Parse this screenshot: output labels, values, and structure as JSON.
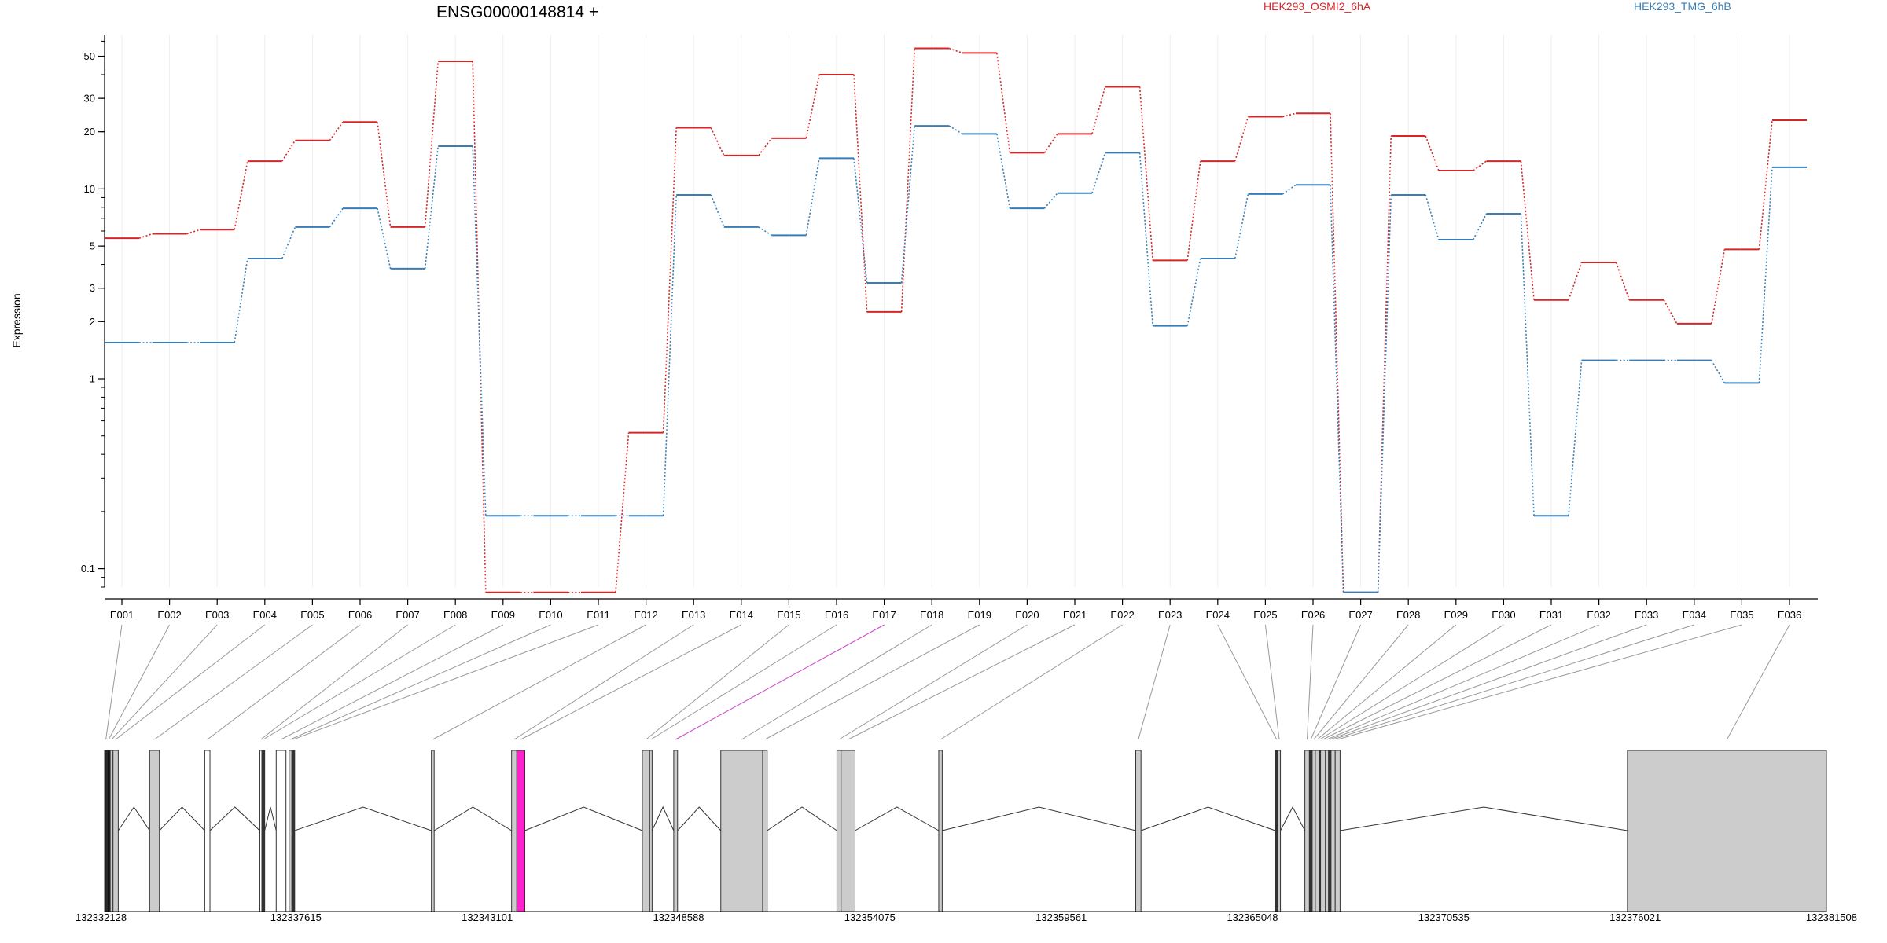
{
  "chart_data": {
    "type": "line",
    "title": "ENSG00000148814 +",
    "ylabel": "Expression",
    "xlabel": "",
    "yscale": "log",
    "ylim": [
      0.08,
      65
    ],
    "yticks": [
      0.1,
      1,
      2,
      3,
      5,
      10,
      20,
      30,
      50
    ],
    "grid": true,
    "legend_position": "top",
    "categories": [
      "E001",
      "E002",
      "E003",
      "E004",
      "E005",
      "E006",
      "E007",
      "E008",
      "E009",
      "E010",
      "E011",
      "E012",
      "E013",
      "E014",
      "E015",
      "E016",
      "E017",
      "E018",
      "E019",
      "E020",
      "E021",
      "E022",
      "E023",
      "E024",
      "E025",
      "E026",
      "E027",
      "E028",
      "E029",
      "E030",
      "E031",
      "E032",
      "E033",
      "E034",
      "E035",
      "E036"
    ],
    "highlight_exon": "E017",
    "series": [
      {
        "name": "HEK293_OSMI2_6hA",
        "color": "#d62728",
        "values": [
          5.5,
          5.8,
          6.1,
          14,
          18,
          22.5,
          6.3,
          47,
          0.075,
          0.075,
          0.075,
          0.52,
          21,
          15,
          18.5,
          40,
          2.25,
          55,
          52,
          15.5,
          19.5,
          34.5,
          4.2,
          14,
          24,
          25,
          0.075,
          19,
          12.5,
          14,
          2.6,
          4.1,
          2.6,
          1.95,
          4.8,
          23
        ]
      },
      {
        "name": "HEK293_TMG_6hB",
        "color": "#377eb8",
        "values": [
          1.55,
          1.55,
          1.55,
          4.3,
          6.3,
          7.9,
          3.8,
          16.8,
          0.19,
          0.19,
          0.19,
          0.19,
          9.3,
          6.3,
          5.7,
          14.5,
          3.2,
          21.5,
          19.5,
          7.9,
          9.5,
          15.5,
          1.9,
          4.3,
          9.4,
          10.5,
          0.075,
          9.3,
          5.4,
          7.4,
          0.19,
          1.25,
          1.25,
          1.25,
          0.95,
          13
        ]
      }
    ],
    "genomic_axis": {
      "tick_labels": [
        "132332128",
        "132337615",
        "132343101",
        "132348588",
        "132354075",
        "132359561",
        "132365048",
        "132370535",
        "132376021",
        "132381508"
      ],
      "range": [
        132332128,
        132381508
      ]
    },
    "exons": [
      {
        "id": "E001",
        "start": 132332128,
        "end": 132332200,
        "fill": "#222222"
      },
      {
        "id": "E002",
        "start": 132332200,
        "end": 132332290,
        "fill": "#111111"
      },
      {
        "id": "E003",
        "start": 132332290,
        "end": 132332370,
        "fill": "#cccccc"
      },
      {
        "id": "E004",
        "start": 132332370,
        "end": 132332520,
        "fill": "#cccccc"
      },
      {
        "id": "E005",
        "start": 132333420,
        "end": 132333700,
        "fill": "#cccccc"
      },
      {
        "id": "E006",
        "start": 132335000,
        "end": 132335150,
        "fill": "#ffffff"
      },
      {
        "id": "E007",
        "start": 132336580,
        "end": 132336640,
        "fill": "#ffffff"
      },
      {
        "id": "E008",
        "start": 132336640,
        "end": 132336720,
        "fill": "#333333"
      },
      {
        "id": "E009",
        "start": 132337050,
        "end": 132337330,
        "fill": "#ffffff"
      },
      {
        "id": "E010",
        "start": 132337420,
        "end": 132337500,
        "fill": "#cccccc"
      },
      {
        "id": "E011",
        "start": 132337500,
        "end": 132337580,
        "fill": "#333333"
      },
      {
        "id": "E012",
        "start": 132341500,
        "end": 132341580,
        "fill": "#cccccc"
      },
      {
        "id": "E013",
        "start": 132343800,
        "end": 132343950,
        "fill": "#cccccc"
      },
      {
        "id": "E014",
        "start": 132343950,
        "end": 132344180,
        "fill": "#ff22cc"
      },
      {
        "id": "E015",
        "start": 132347550,
        "end": 132347760,
        "fill": "#cccccc"
      },
      {
        "id": "E016",
        "start": 132347760,
        "end": 132347830,
        "fill": "#cccccc"
      },
      {
        "id": "E017",
        "start": 132348450,
        "end": 132348560,
        "fill": "#cccccc"
      },
      {
        "id": "E018",
        "start": 132349800,
        "end": 132351000,
        "fill": "#cccccc"
      },
      {
        "id": "E019",
        "start": 132351000,
        "end": 132351130,
        "fill": "#cccccc"
      },
      {
        "id": "E020",
        "start": 132353130,
        "end": 132353250,
        "fill": "#cccccc"
      },
      {
        "id": "E021",
        "start": 132353250,
        "end": 132353650,
        "fill": "#cccccc"
      },
      {
        "id": "E022",
        "start": 132356050,
        "end": 132356150,
        "fill": "#cccccc"
      },
      {
        "id": "E023",
        "start": 132361700,
        "end": 132361850,
        "fill": "#cccccc"
      },
      {
        "id": "E024",
        "start": 132365700,
        "end": 132365780,
        "fill": "#333333"
      },
      {
        "id": "E025",
        "start": 132365780,
        "end": 132365850,
        "fill": "#cccccc"
      },
      {
        "id": "E026",
        "start": 132366550,
        "end": 132366680,
        "fill": "#cccccc"
      },
      {
        "id": "E027",
        "start": 132366680,
        "end": 132366760,
        "fill": "#333333"
      },
      {
        "id": "E028",
        "start": 132366760,
        "end": 132366850,
        "fill": "#cccccc"
      },
      {
        "id": "E029",
        "start": 132366850,
        "end": 132366960,
        "fill": "#cccccc"
      },
      {
        "id": "E030",
        "start": 132366960,
        "end": 132367000,
        "fill": "#333333"
      },
      {
        "id": "E031",
        "start": 132367000,
        "end": 132367140,
        "fill": "#cccccc"
      },
      {
        "id": "E032",
        "start": 132367140,
        "end": 132367230,
        "fill": "#cccccc"
      },
      {
        "id": "E033",
        "start": 132367230,
        "end": 132367300,
        "fill": "#333333"
      },
      {
        "id": "E034",
        "start": 132367300,
        "end": 132367420,
        "fill": "#cccccc"
      },
      {
        "id": "E035",
        "start": 132367420,
        "end": 132367560,
        "fill": "#cccccc"
      },
      {
        "id": "E036",
        "start": 132375800,
        "end": 132381508,
        "fill": "#cccccc"
      }
    ]
  }
}
